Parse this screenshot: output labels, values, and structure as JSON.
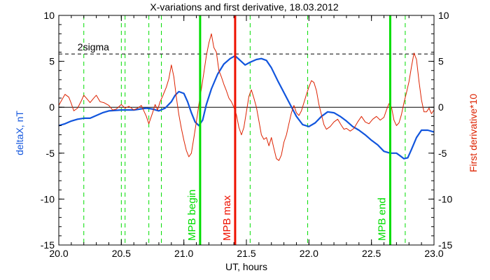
{
  "chart_data": {
    "type": "line",
    "title": "X-variations and first derivative, 18.03.2012",
    "xlabel": "UT, hours",
    "ylabel_left": "deltaX, nT",
    "ylabel_right": "First derivative*10",
    "xlim": [
      20.0,
      23.0
    ],
    "ylim_left": [
      -15,
      10
    ],
    "ylim_right": [
      -15,
      10
    ],
    "x_ticks": [
      "20.0",
      "20.5",
      "21.0",
      "21.5",
      "22.0",
      "22.5",
      "23.0"
    ],
    "y_ticks_left": [
      "10",
      "5",
      "0",
      "-5",
      "-10",
      "-15"
    ],
    "y_ticks_right": [
      "10",
      "5",
      "0",
      "-5",
      "-10",
      "-15"
    ],
    "zero_line": 0,
    "sigma_line": {
      "label": "2sigma",
      "value": 5.8
    },
    "series": [
      {
        "name": "deltaX, nT",
        "color": "#1155dd",
        "axis": "left",
        "points": [
          [
            20.0,
            -2.0
          ],
          [
            20.05,
            -1.8
          ],
          [
            20.1,
            -1.5
          ],
          [
            20.15,
            -1.3
          ],
          [
            20.2,
            -1.2
          ],
          [
            20.25,
            -1.2
          ],
          [
            20.3,
            -0.9
          ],
          [
            20.35,
            -0.6
          ],
          [
            20.4,
            -0.4
          ],
          [
            20.5,
            -0.3
          ],
          [
            20.55,
            -0.3
          ],
          [
            20.6,
            -0.3
          ],
          [
            20.65,
            -0.2
          ],
          [
            20.7,
            -0.1
          ],
          [
            20.75,
            -0.2
          ],
          [
            20.8,
            -0.4
          ],
          [
            20.85,
            -0.1
          ],
          [
            20.9,
            0.6
          ],
          [
            20.93,
            1.3
          ],
          [
            20.96,
            1.7
          ],
          [
            21.0,
            1.5
          ],
          [
            21.03,
            0.6
          ],
          [
            21.06,
            -0.6
          ],
          [
            21.09,
            -1.6
          ],
          [
            21.12,
            -2.0
          ],
          [
            21.15,
            -1.4
          ],
          [
            21.18,
            0.3
          ],
          [
            21.22,
            2.0
          ],
          [
            21.27,
            3.6
          ],
          [
            21.32,
            4.7
          ],
          [
            21.37,
            5.3
          ],
          [
            21.41,
            5.6
          ],
          [
            21.45,
            5.1
          ],
          [
            21.49,
            4.6
          ],
          [
            21.53,
            4.9
          ],
          [
            21.58,
            5.2
          ],
          [
            21.62,
            5.3
          ],
          [
            21.66,
            5.1
          ],
          [
            21.7,
            4.3
          ],
          [
            21.75,
            2.9
          ],
          [
            21.8,
            1.6
          ],
          [
            21.85,
            0.3
          ],
          [
            21.9,
            -1.0
          ],
          [
            21.95,
            -1.9
          ],
          [
            22.0,
            -2.1
          ],
          [
            22.05,
            -1.7
          ],
          [
            22.1,
            -1.0
          ],
          [
            22.15,
            -0.5
          ],
          [
            22.2,
            -0.6
          ],
          [
            22.25,
            -1.0
          ],
          [
            22.3,
            -1.5
          ],
          [
            22.35,
            -2.1
          ],
          [
            22.4,
            -2.5
          ],
          [
            22.45,
            -3.0
          ],
          [
            22.5,
            -3.6
          ],
          [
            22.55,
            -4.1
          ],
          [
            22.6,
            -4.8
          ],
          [
            22.65,
            -5.0
          ],
          [
            22.7,
            -5.0
          ],
          [
            22.73,
            -5.3
          ],
          [
            22.76,
            -5.6
          ],
          [
            22.79,
            -5.5
          ],
          [
            22.82,
            -4.6
          ],
          [
            22.86,
            -3.3
          ],
          [
            22.9,
            -2.5
          ],
          [
            22.95,
            -2.5
          ],
          [
            23.0,
            -2.7
          ]
        ]
      },
      {
        "name": "First derivative*10",
        "color": "#dd2200",
        "axis": "right",
        "points": [
          [
            20.0,
            0.2
          ],
          [
            20.02,
            0.7
          ],
          [
            20.05,
            1.4
          ],
          [
            20.08,
            1.1
          ],
          [
            20.1,
            0.4
          ],
          [
            20.12,
            -0.4
          ],
          [
            20.15,
            -0.1
          ],
          [
            20.18,
            0.7
          ],
          [
            20.2,
            1.3
          ],
          [
            20.22,
            1.0
          ],
          [
            20.25,
            0.5
          ],
          [
            20.28,
            1.0
          ],
          [
            20.3,
            1.3
          ],
          [
            20.33,
            0.6
          ],
          [
            20.36,
            0.5
          ],
          [
            20.4,
            0.2
          ],
          [
            20.43,
            -0.3
          ],
          [
            20.46,
            -0.2
          ],
          [
            20.5,
            0.3
          ],
          [
            20.53,
            -0.1
          ],
          [
            20.56,
            0.1
          ],
          [
            20.6,
            -0.3
          ],
          [
            20.63,
            -0.1
          ],
          [
            20.66,
            0.2
          ],
          [
            20.7,
            -1.0
          ],
          [
            20.72,
            -1.8
          ],
          [
            20.75,
            -0.6
          ],
          [
            20.77,
            0.3
          ],
          [
            20.79,
            -0.3
          ],
          [
            20.81,
            0.6
          ],
          [
            20.83,
            1.2
          ],
          [
            20.86,
            2.2
          ],
          [
            20.88,
            3.1
          ],
          [
            20.9,
            4.6
          ],
          [
            20.92,
            3.3
          ],
          [
            20.94,
            1.1
          ],
          [
            20.96,
            -0.8
          ],
          [
            20.98,
            -2.3
          ],
          [
            21.0,
            -3.6
          ],
          [
            21.02,
            -4.7
          ],
          [
            21.04,
            -5.4
          ],
          [
            21.06,
            -5.0
          ],
          [
            21.08,
            -3.3
          ],
          [
            21.1,
            -1.6
          ],
          [
            21.12,
            0.3
          ],
          [
            21.14,
            2.0
          ],
          [
            21.16,
            3.8
          ],
          [
            21.18,
            5.6
          ],
          [
            21.2,
            7.0
          ],
          [
            21.22,
            8.0
          ],
          [
            21.24,
            6.5
          ],
          [
            21.26,
            6.0
          ],
          [
            21.28,
            4.0
          ],
          [
            21.3,
            3.3
          ],
          [
            21.32,
            2.5
          ],
          [
            21.34,
            1.8
          ],
          [
            21.36,
            1.0
          ],
          [
            21.38,
            0.6
          ],
          [
            21.4,
            0.0
          ],
          [
            21.42,
            -0.8
          ],
          [
            21.44,
            -2.2
          ],
          [
            21.46,
            -3.0
          ],
          [
            21.48,
            -2.2
          ],
          [
            21.5,
            -0.5
          ],
          [
            21.52,
            1.2
          ],
          [
            21.54,
            1.9
          ],
          [
            21.56,
            1.0
          ],
          [
            21.58,
            0.0
          ],
          [
            21.6,
            -1.5
          ],
          [
            21.62,
            -3.0
          ],
          [
            21.64,
            -3.5
          ],
          [
            21.66,
            -3.3
          ],
          [
            21.68,
            -4.2
          ],
          [
            21.7,
            -3.3
          ],
          [
            21.72,
            -4.5
          ],
          [
            21.74,
            -5.6
          ],
          [
            21.76,
            -5.8
          ],
          [
            21.78,
            -5.2
          ],
          [
            21.8,
            -3.8
          ],
          [
            21.82,
            -3.0
          ],
          [
            21.84,
            -1.8
          ],
          [
            21.86,
            -0.6
          ],
          [
            21.88,
            0.2
          ],
          [
            21.9,
            -0.6
          ],
          [
            21.92,
            -0.9
          ],
          [
            21.94,
            -0.4
          ],
          [
            21.96,
            0.5
          ],
          [
            21.98,
            1.4
          ],
          [
            22.0,
            2.2
          ],
          [
            22.02,
            2.9
          ],
          [
            22.04,
            2.7
          ],
          [
            22.06,
            1.8
          ],
          [
            22.08,
            0.3
          ],
          [
            22.1,
            -0.8
          ],
          [
            22.12,
            -1.9
          ],
          [
            22.14,
            -2.4
          ],
          [
            22.17,
            -2.1
          ],
          [
            22.2,
            -1.6
          ],
          [
            22.23,
            -1.3
          ],
          [
            22.26,
            -2.0
          ],
          [
            22.28,
            -2.4
          ],
          [
            22.3,
            -2.3
          ],
          [
            22.33,
            -2.6
          ],
          [
            22.36,
            -2.3
          ],
          [
            22.39,
            -1.6
          ],
          [
            22.42,
            -1.0
          ],
          [
            22.45,
            -1.6
          ],
          [
            22.48,
            -1.8
          ],
          [
            22.51,
            -1.3
          ],
          [
            22.54,
            -1.0
          ],
          [
            22.57,
            -1.4
          ],
          [
            22.6,
            -1.1
          ],
          [
            22.62,
            -0.3
          ],
          [
            22.64,
            0.4
          ],
          [
            22.66,
            0.0
          ],
          [
            22.68,
            -1.4
          ],
          [
            22.7,
            -2.0
          ],
          [
            22.72,
            -1.7
          ],
          [
            22.74,
            -0.8
          ],
          [
            22.76,
            0.5
          ],
          [
            22.78,
            1.6
          ],
          [
            22.8,
            2.8
          ],
          [
            22.82,
            4.4
          ],
          [
            22.84,
            5.9
          ],
          [
            22.86,
            5.2
          ],
          [
            22.88,
            2.8
          ],
          [
            22.9,
            0.8
          ],
          [
            22.92,
            -0.5
          ],
          [
            22.94,
            -0.5
          ],
          [
            22.96,
            -0.1
          ],
          [
            22.98,
            -0.7
          ],
          [
            23.0,
            -0.3
          ]
        ]
      }
    ],
    "markers": [
      {
        "label": "MPB begin",
        "x": 21.13,
        "color": "#00dd00",
        "style": "solid"
      },
      {
        "label": "MPB max",
        "x": 21.41,
        "color": "#ee1100",
        "style": "solid"
      },
      {
        "label": "MPB end",
        "x": 22.65,
        "color": "#00dd00",
        "style": "solid"
      }
    ],
    "dashed_markers": {
      "color": "#00dd00",
      "x": [
        20.2,
        20.5,
        20.53,
        20.72,
        20.82,
        21.53,
        21.99,
        22.77
      ]
    }
  }
}
